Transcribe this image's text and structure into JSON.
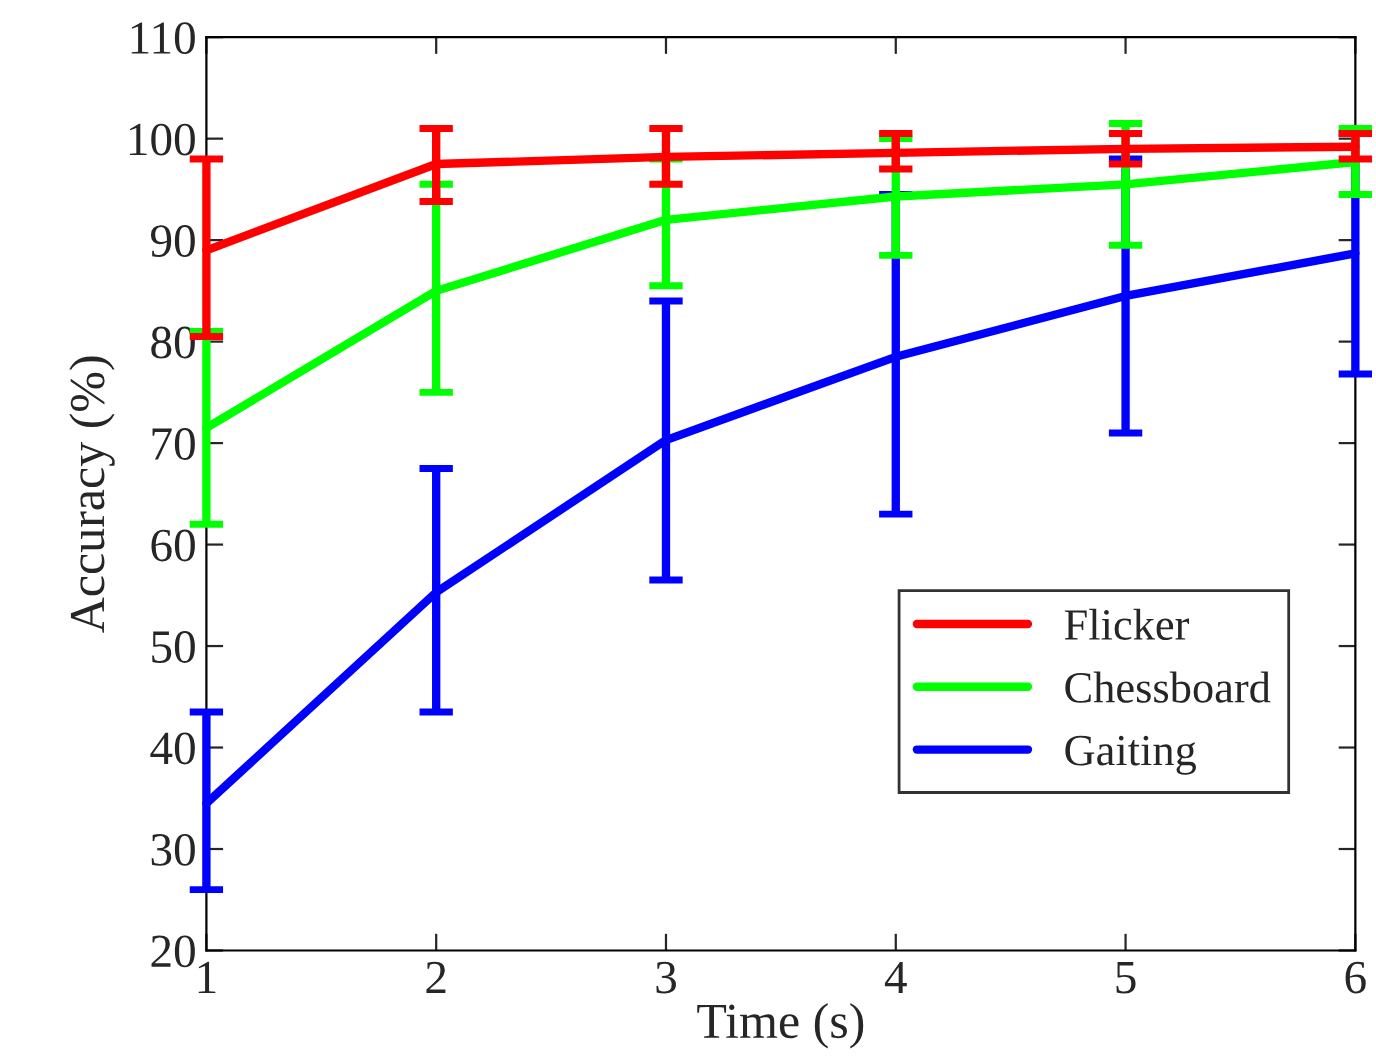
{
  "chart_data": {
    "type": "line",
    "xlabel": "Time (s)",
    "ylabel": "Accuracy (%)",
    "x": [
      1,
      2,
      3,
      4,
      5,
      6
    ],
    "series": [
      {
        "name": "Flicker",
        "color": "#ff0000",
        "values": [
          89,
          97.5,
          98.2,
          98.6,
          99,
          99.2
        ],
        "errors": [
          [
            80.5,
            98
          ],
          [
            93.8,
            101
          ],
          [
            95.5,
            101
          ],
          [
            97,
            100.5
          ],
          [
            97.5,
            100.5
          ],
          [
            98,
            100.5
          ]
        ]
      },
      {
        "name": "Chessboard",
        "color": "#00ff00",
        "values": [
          71.5,
          85,
          92,
          94.3,
          95.5,
          97.7
        ],
        "errors": [
          [
            62,
            81
          ],
          [
            75,
            95.5
          ],
          [
            85.5,
            98
          ],
          [
            88.5,
            100
          ],
          [
            89.5,
            101.5
          ],
          [
            94.5,
            101
          ]
        ]
      },
      {
        "name": "Gaiting",
        "color": "#0000ff",
        "values": [
          34.5,
          55.3,
          70.3,
          78.5,
          84.5,
          88.7
        ],
        "errors": [
          [
            26,
            43.5
          ],
          [
            43.5,
            67.5
          ],
          [
            56.5,
            84
          ],
          [
            63,
            94.5
          ],
          [
            71,
            98
          ],
          [
            76.8,
            100.5
          ]
        ]
      }
    ],
    "xlim": [
      1,
      6
    ],
    "xticks": [
      1,
      2,
      3,
      4,
      5,
      6
    ],
    "ylim": [
      20,
      110
    ],
    "yticks": [
      20,
      30,
      40,
      50,
      60,
      70,
      80,
      90,
      100,
      110
    ],
    "legend": "bottom right",
    "grid": false,
    "marker": "none",
    "line_style": "solid"
  }
}
